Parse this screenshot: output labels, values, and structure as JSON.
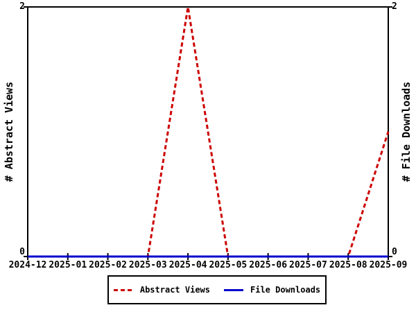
{
  "chart_data": {
    "type": "line",
    "categories": [
      "2024-12",
      "2025-01",
      "2025-02",
      "2025-03",
      "2025-04",
      "2025-05",
      "2025-06",
      "2025-07",
      "2025-08",
      "2025-09"
    ],
    "series": [
      {
        "name": "Abstract Views",
        "values": [
          0,
          0,
          0,
          0,
          2,
          0,
          0,
          0,
          0,
          1
        ],
        "color": "#cc0000",
        "style": "dashed"
      },
      {
        "name": "File Downloads",
        "values": [
          0,
          0,
          0,
          0,
          0,
          0,
          0,
          0,
          0,
          0
        ],
        "color": "#0000cc",
        "style": "solid"
      }
    ],
    "title": "",
    "xlabel": "",
    "ylabel": "# Abstract Views",
    "y2label": "# File Downloads",
    "ylim": [
      0,
      2
    ],
    "y_tick_labels": [
      "0",
      "2"
    ],
    "grid": false,
    "legend_position": "below",
    "frame_color": "#000000",
    "background_color": "#ffffff"
  }
}
